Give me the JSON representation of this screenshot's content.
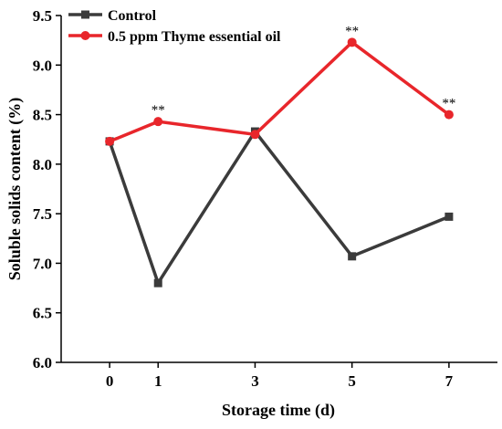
{
  "chart_data": {
    "type": "line",
    "xlabel": "Storage time (d)",
    "ylabel": "Soluble solids content (%)",
    "x": [
      0,
      1,
      3,
      5,
      7
    ],
    "x_ticks": [
      "0",
      "1",
      "3",
      "5",
      "7"
    ],
    "ylim": [
      6.0,
      9.5
    ],
    "y_ticks": [
      "6.0",
      "6.5",
      "7.0",
      "7.5",
      "8.0",
      "8.5",
      "9.0",
      "9.5"
    ],
    "grid": false,
    "legend_position": "top-left",
    "series": [
      {
        "name": "Control",
        "color": "#3b3b3b",
        "marker": "square",
        "values": [
          8.23,
          6.8,
          8.33,
          7.07,
          7.47
        ]
      },
      {
        "name": "0.5 ppm Thyme essential oil",
        "color": "#e8262b",
        "marker": "circle",
        "values": [
          8.23,
          8.43,
          8.3,
          9.23,
          8.5
        ]
      }
    ],
    "annotations": [
      {
        "text": "**",
        "x": 1,
        "y": 8.43
      },
      {
        "text": "**",
        "x": 5,
        "y": 9.23
      },
      {
        "text": "**",
        "x": 7,
        "y": 8.5
      }
    ]
  }
}
